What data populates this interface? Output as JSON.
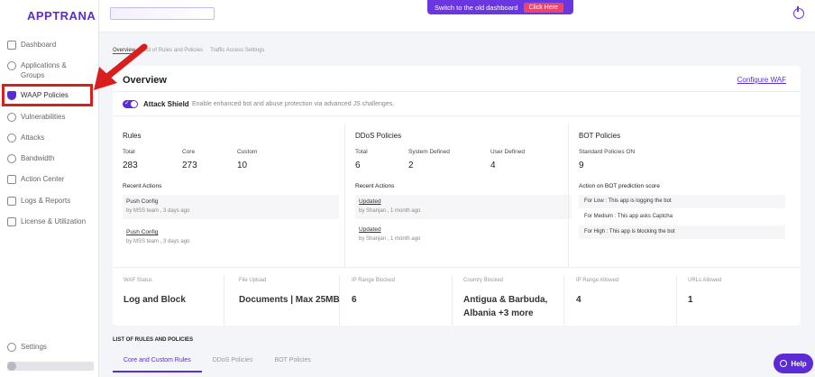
{
  "app": {
    "logo": "APPTRANA"
  },
  "sidebar": {
    "items": [
      {
        "label": "Dashboard",
        "icon": "grid-icon"
      },
      {
        "label": "Applications & Groups",
        "icon": "globe-icon"
      },
      {
        "label": "WAAP Policies",
        "icon": "shield-icon"
      },
      {
        "label": "Vulnerabilities",
        "icon": "bug-icon"
      },
      {
        "label": "Attacks",
        "icon": "target-icon"
      },
      {
        "label": "Bandwidth",
        "icon": "gauge-icon"
      },
      {
        "label": "Action Center",
        "icon": "list-icon"
      },
      {
        "label": "Logs & Reports",
        "icon": "doc-icon"
      },
      {
        "label": "License & Utilization",
        "icon": "card-icon"
      }
    ],
    "settings_label": "Settings"
  },
  "topbar": {
    "old_dashboard_text": "Switch to the old dashboard",
    "click_here": "Click Here"
  },
  "breadcrumb_tabs": [
    "Overview",
    "List of Rules and Policies",
    "Traffic Access Settings"
  ],
  "overview": {
    "title": "Overview",
    "configure_link": "Configure WAF",
    "attack_shield": {
      "label": "Attack Shield",
      "description": "Enable enhanced bot and abuse protection via advanced JS challenges.",
      "enabled": true
    },
    "rules": {
      "title": "Rules",
      "total_label": "Total",
      "total": "283",
      "core_label": "Core",
      "core": "273",
      "custom_label": "Custom",
      "custom": "10",
      "recent_label": "Recent Actions",
      "actions": [
        {
          "title": "Push Config",
          "meta": "by MSS team , 3 days ago"
        },
        {
          "title": "Push Config",
          "meta": "by MSS team , 3 days ago"
        }
      ]
    },
    "ddos": {
      "title": "DDoS Policies",
      "total_label": "Total",
      "total": "6",
      "system_label": "System Defined",
      "system": "2",
      "user_label": "User Defined",
      "user": "4",
      "recent_label": "Recent Actions",
      "actions": [
        {
          "title": "Updated",
          "meta": "by Shanjan , 1 month ago"
        },
        {
          "title": "Updated",
          "meta": "by Shanjan , 1 month ago"
        }
      ]
    },
    "bot": {
      "title": "BOT Policies",
      "standard_label": "Standard Policies ON",
      "standard": "9",
      "action_label": "Action on BOT prediction score",
      "rows": [
        "For Low : This app is logging the bot",
        "For Medium : This app asks Captcha",
        "For High : This app is blocking the bot"
      ]
    },
    "stats": [
      {
        "label": "WAF Status",
        "value": "Log and Block"
      },
      {
        "label": "File Upload",
        "value": "Documents | Max 25MB"
      },
      {
        "label": "IP Range Blocked",
        "value": "6"
      },
      {
        "label": "Country Blocked",
        "value": "Antigua & Barbuda, Albania +3 more"
      },
      {
        "label": "IP Range Allowed",
        "value": "4"
      },
      {
        "label": "URLs Allowed",
        "value": "1"
      }
    ]
  },
  "list": {
    "title": "LIST OF RULES AND POLICIES",
    "tabs": [
      "Core and Custom Rules",
      "DDoS Policies",
      "BOT Policies"
    ]
  },
  "help": {
    "label": "Help"
  },
  "colors": {
    "accent": "#5b2bd6",
    "highlight": "#d91e1e",
    "click_here": "#e8476d"
  }
}
